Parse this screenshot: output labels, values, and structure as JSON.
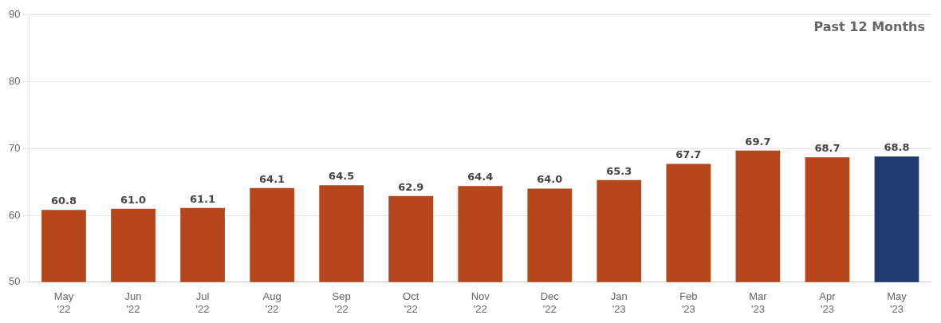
{
  "chart_data": {
    "type": "bar",
    "categories": [
      "May\n'22",
      "Jun\n'22",
      "Jul\n'22",
      "Aug\n'22",
      "Sep\n'22",
      "Oct\n'22",
      "Nov\n'22",
      "Dec\n'22",
      "Jan\n'23",
      "Feb\n'23",
      "Mar\n'23",
      "Apr\n'23",
      "May\n'23"
    ],
    "values": [
      60.8,
      61.0,
      61.1,
      64.1,
      64.5,
      62.9,
      64.4,
      64.0,
      65.3,
      67.7,
      69.7,
      68.7,
      68.8
    ],
    "value_labels": [
      "60.8",
      "61.0",
      "61.1",
      "64.1",
      "64.5",
      "62.9",
      "64.4",
      "64.0",
      "65.3",
      "67.7",
      "69.7",
      "68.7",
      "68.8"
    ],
    "colors": [
      "#b5451b",
      "#b5451b",
      "#b5451b",
      "#b5451b",
      "#b5451b",
      "#b5451b",
      "#b5451b",
      "#b5451b",
      "#b5451b",
      "#b5451b",
      "#b5451b",
      "#b5451b",
      "#1f3a6e"
    ],
    "ylim": [
      50,
      90
    ],
    "yticks": [
      50,
      60,
      70,
      80,
      90
    ],
    "grid": true,
    "data_labels": true,
    "annotations": [
      {
        "text": "Past 12 Months"
      }
    ]
  }
}
